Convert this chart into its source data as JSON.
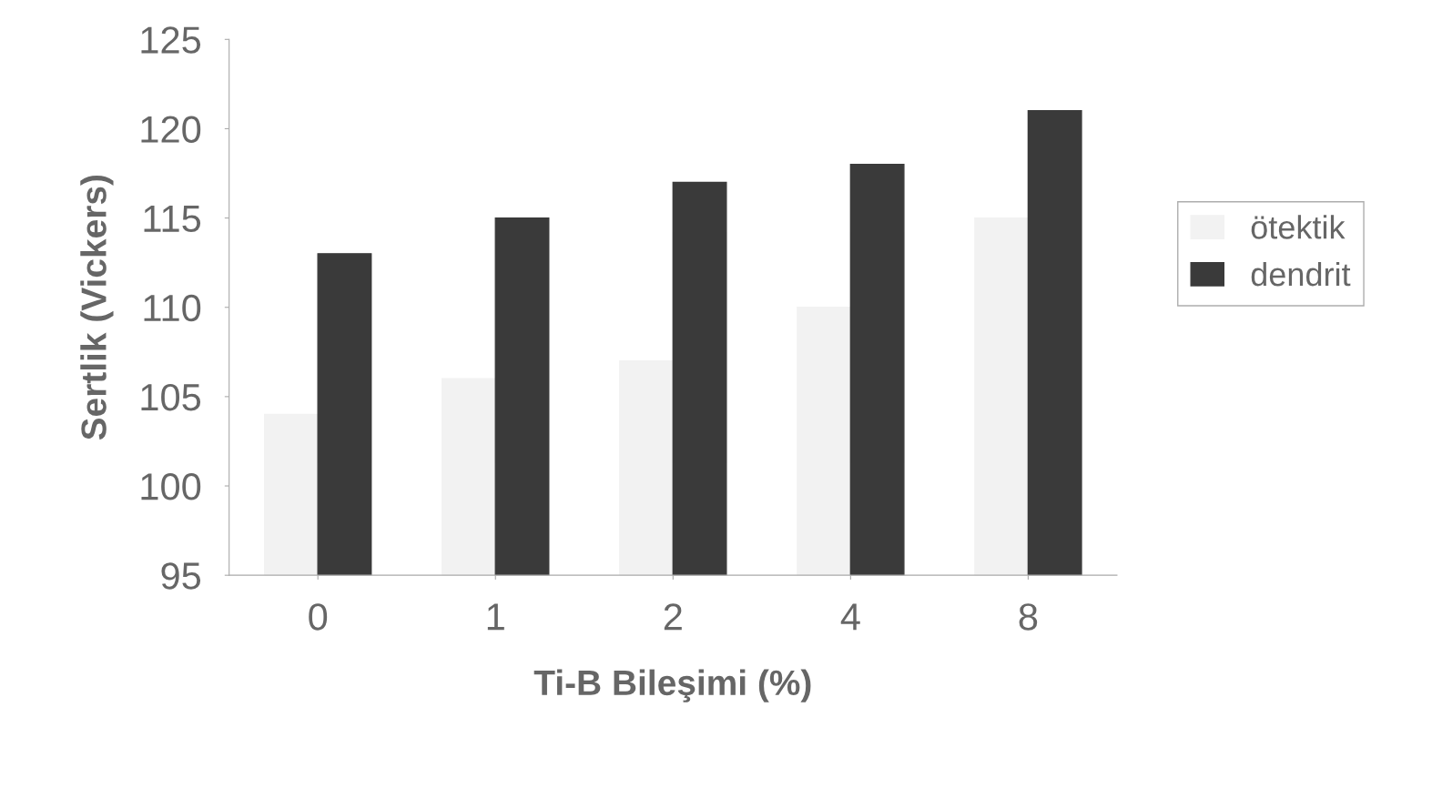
{
  "chart_data": {
    "type": "bar",
    "xlabel": "Ti-B Bileşimi (%)",
    "ylabel": "Sertlik (Vickers)",
    "categories": [
      "0",
      "1",
      "2",
      "4",
      "8"
    ],
    "series": [
      {
        "name": "ötektik",
        "color": "#f2f2f2",
        "values": [
          104,
          106,
          107,
          110,
          115
        ]
      },
      {
        "name": "dendrit",
        "color": "#3a3a3a",
        "values": [
          113,
          115,
          117,
          118,
          121
        ]
      }
    ],
    "ylim": [
      95,
      125
    ],
    "yticks": [
      95,
      100,
      105,
      110,
      115,
      120,
      125
    ],
    "legend": "right"
  }
}
